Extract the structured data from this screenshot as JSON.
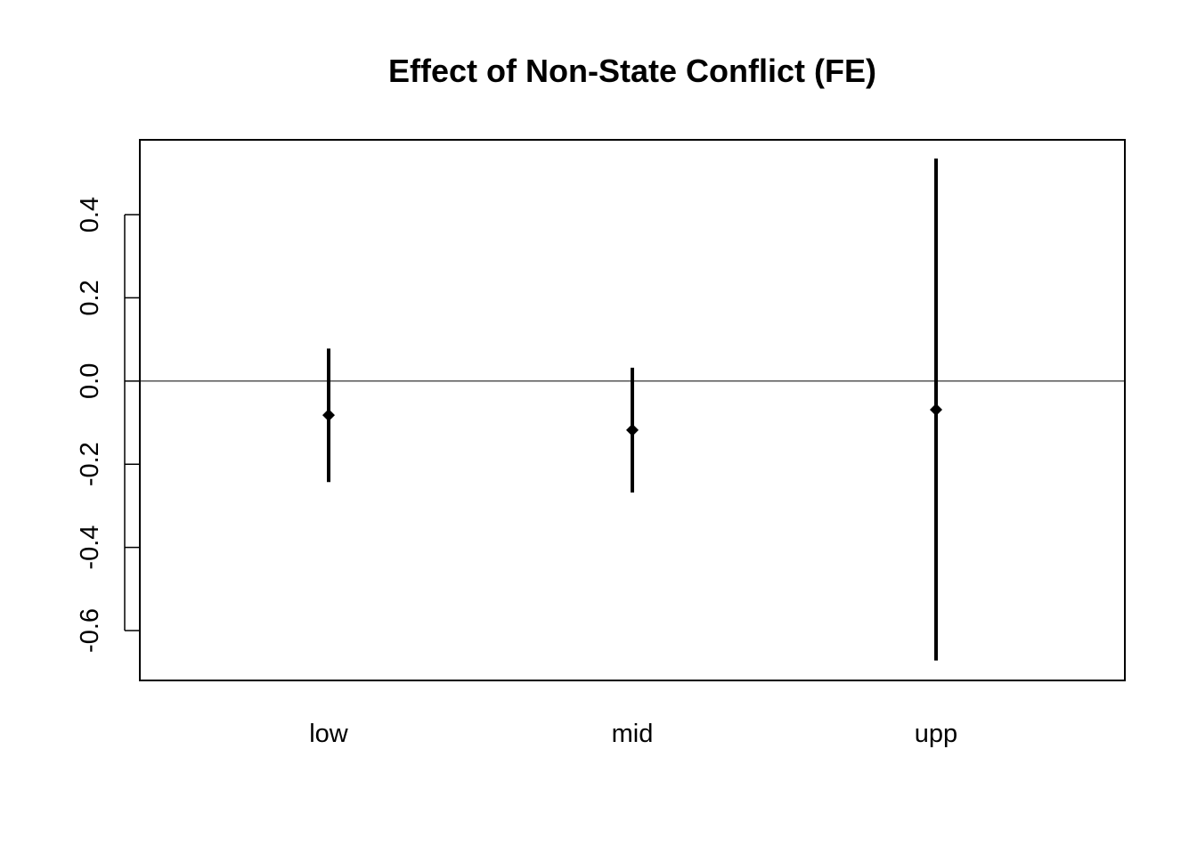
{
  "chart_data": {
    "type": "errorbar",
    "title": "Effect of Non-State Conflict (FE)",
    "xlabel": "",
    "ylabel": "",
    "categories": [
      "low",
      "mid",
      "upp"
    ],
    "estimates": [
      -0.082,
      -0.118,
      -0.069
    ],
    "ci_lower": [
      -0.243,
      -0.268,
      -0.672
    ],
    "ci_upper": [
      0.078,
      0.032,
      0.535
    ],
    "ylim": [
      -0.72,
      0.58
    ],
    "y_ticks": [
      -0.6,
      -0.4,
      -0.2,
      0.0,
      0.2,
      0.4
    ],
    "y_tick_labels": [
      "-0.6",
      "-0.4",
      "-0.2",
      "0.0",
      "0.2",
      "0.4"
    ],
    "reference_line": 0,
    "grid": false,
    "legend": "none",
    "marker": "diamond",
    "colors": {
      "marks": "#000000",
      "axes": "#000000",
      "background": "#ffffff"
    }
  }
}
